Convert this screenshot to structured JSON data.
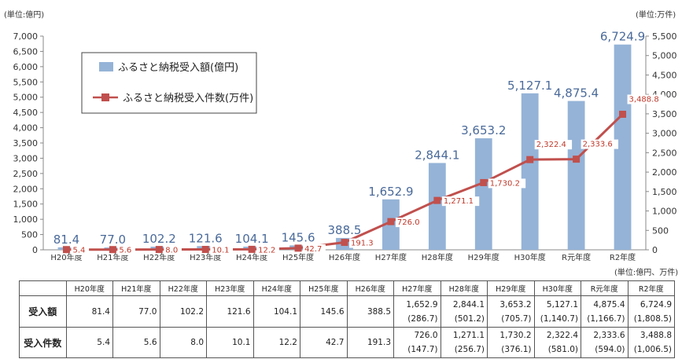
{
  "chart_data": {
    "type": "bar+line",
    "categories": [
      "H20年度",
      "H21年度",
      "H22年度",
      "H23年度",
      "H24年度",
      "H25年度",
      "H26年度",
      "H27年度",
      "H28年度",
      "H29年度",
      "H30年度",
      "R元年度",
      "R2年度"
    ],
    "series": [
      {
        "name": "ふるさと納税受入額(億円)",
        "type": "bar",
        "axis": "left",
        "color": "#95b3d7",
        "values": [
          81.4,
          77.0,
          102.2,
          121.6,
          104.1,
          145.6,
          388.5,
          1652.9,
          2844.1,
          3653.2,
          5127.1,
          4875.4,
          6724.9
        ],
        "labels": [
          "81.4",
          "77.0",
          "102.2",
          "121.6",
          "104.1",
          "145.6",
          "388.5",
          "1,652.9",
          "2,844.1",
          "3,653.2",
          "5,127.1",
          "4,875.4",
          "6,724.9"
        ]
      },
      {
        "name": "ふるさと納税受入件数(万件)",
        "type": "line",
        "axis": "right",
        "color": "#c0504d",
        "values": [
          5.4,
          5.6,
          8.0,
          10.1,
          12.2,
          42.7,
          191.3,
          726.0,
          1271.1,
          1730.2,
          2322.4,
          2333.6,
          3488.8
        ],
        "labels": [
          "5.4",
          "5.6",
          "8.0",
          "10.1",
          "12.2",
          "42.7",
          "191.3",
          "726.0",
          "1,271.1",
          "1,730.2",
          "2,322.4",
          "2,333.6",
          "3,488.8"
        ]
      }
    ],
    "y_left": {
      "min": 0,
      "max": 7000,
      "step": 500,
      "unit": "(単位:億円)",
      "ticks": [
        "0",
        "500",
        "1,000",
        "1,500",
        "2,000",
        "2,500",
        "3,000",
        "3,500",
        "4,000",
        "4,500",
        "5,000",
        "5,500",
        "6,000",
        "6,500",
        "7,000"
      ]
    },
    "y_right": {
      "min": 0,
      "max": 5500,
      "step": 500,
      "unit": "(単位:万件)",
      "ticks": [
        "0",
        "500",
        "1,000",
        "1,500",
        "2,000",
        "2,500",
        "3,000",
        "3,500",
        "4,000",
        "4,500",
        "5,000",
        "5,500"
      ]
    },
    "legend_position": "top-left",
    "grid": false
  },
  "table": {
    "unit": "(単位:億円、万件)",
    "header": [
      "",
      "H20年度",
      "H21年度",
      "H22年度",
      "H23年度",
      "H24年度",
      "H25年度",
      "H26年度",
      "H27年度",
      "H28年度",
      "H29年度",
      "H30年度",
      "R元年度",
      "R2年度"
    ],
    "rows": [
      {
        "label": "受入額",
        "cells": [
          [
            "81.4",
            ""
          ],
          [
            "77.0",
            ""
          ],
          [
            "102.2",
            ""
          ],
          [
            "121.6",
            ""
          ],
          [
            "104.1",
            ""
          ],
          [
            "145.6",
            ""
          ],
          [
            "388.5",
            ""
          ],
          [
            "1,652.9",
            "(286.7)"
          ],
          [
            "2,844.1",
            "(501.2)"
          ],
          [
            "3,653.2",
            "(705.7)"
          ],
          [
            "5,127.1",
            "(1,140.7)"
          ],
          [
            "4,875.4",
            "(1,166.7)"
          ],
          [
            "6,724.9",
            "(1,808.5)"
          ]
        ]
      },
      {
        "label": "受入件数",
        "cells": [
          [
            "5.4",
            ""
          ],
          [
            "5.6",
            ""
          ],
          [
            "8.0",
            ""
          ],
          [
            "10.1",
            ""
          ],
          [
            "12.2",
            ""
          ],
          [
            "42.7",
            ""
          ],
          [
            "191.3",
            ""
          ],
          [
            "726.0",
            "(147.7)"
          ],
          [
            "1,271.1",
            "(256.7)"
          ],
          [
            "1,730.2",
            "(376.1)"
          ],
          [
            "2,322.4",
            "(581.0)"
          ],
          [
            "2,333.6",
            "(594.0)"
          ],
          [
            "3,488.8",
            "(1,006.5)"
          ]
        ]
      }
    ]
  }
}
